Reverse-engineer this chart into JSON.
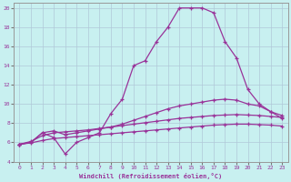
{
  "xlabel": "Windchill (Refroidissement éolien,°C)",
  "background_color": "#c8f0f0",
  "grid_color": "#b0c8d8",
  "line_color": "#993399",
  "xlim": [
    -0.5,
    23.5
  ],
  "ylim": [
    4,
    20.5
  ],
  "xticks": [
    0,
    1,
    2,
    3,
    4,
    5,
    6,
    7,
    8,
    9,
    10,
    11,
    12,
    13,
    14,
    15,
    16,
    17,
    18,
    19,
    20,
    21,
    22,
    23
  ],
  "yticks": [
    4,
    6,
    8,
    10,
    12,
    14,
    16,
    18,
    20
  ],
  "line1_x": [
    0,
    1,
    2,
    3,
    4,
    5,
    6,
    7,
    8,
    9,
    10,
    11,
    12,
    13,
    14,
    15,
    16,
    17,
    18,
    19,
    20,
    21,
    22,
    23
  ],
  "line1_y": [
    5.8,
    6.0,
    7.0,
    6.5,
    4.8,
    6.0,
    6.5,
    7.0,
    9.0,
    10.5,
    14.0,
    14.5,
    16.5,
    18.0,
    20.0,
    20.0,
    20.0,
    19.5,
    16.5,
    14.8,
    11.5,
    10.0,
    9.2,
    8.5
  ],
  "line2_x": [
    0,
    1,
    2,
    3,
    4,
    5,
    6,
    7,
    8,
    9,
    10,
    11,
    12,
    13,
    14,
    15,
    16,
    17,
    18,
    19,
    20,
    21,
    22,
    23
  ],
  "line2_y": [
    5.8,
    6.0,
    7.0,
    7.2,
    6.8,
    7.0,
    7.2,
    7.4,
    7.6,
    7.9,
    8.3,
    8.7,
    9.1,
    9.5,
    9.8,
    10.0,
    10.2,
    10.4,
    10.5,
    10.4,
    10.0,
    9.8,
    9.2,
    8.8
  ],
  "line3_x": [
    0,
    1,
    2,
    3,
    4,
    5,
    6,
    7,
    8,
    9,
    10,
    11,
    12,
    13,
    14,
    15,
    16,
    17,
    18,
    19,
    20,
    21,
    22,
    23
  ],
  "line3_y": [
    5.8,
    6.1,
    6.7,
    7.0,
    7.1,
    7.2,
    7.3,
    7.45,
    7.6,
    7.75,
    7.9,
    8.05,
    8.2,
    8.35,
    8.5,
    8.6,
    8.7,
    8.8,
    8.85,
    8.9,
    8.85,
    8.8,
    8.7,
    8.6
  ],
  "line4_x": [
    0,
    1,
    2,
    3,
    4,
    5,
    6,
    7,
    8,
    9,
    10,
    11,
    12,
    13,
    14,
    15,
    16,
    17,
    18,
    19,
    20,
    21,
    22,
    23
  ],
  "line4_y": [
    5.8,
    5.95,
    6.2,
    6.4,
    6.5,
    6.6,
    6.7,
    6.8,
    6.9,
    7.0,
    7.1,
    7.2,
    7.3,
    7.4,
    7.5,
    7.6,
    7.7,
    7.8,
    7.85,
    7.9,
    7.9,
    7.85,
    7.8,
    7.7
  ]
}
